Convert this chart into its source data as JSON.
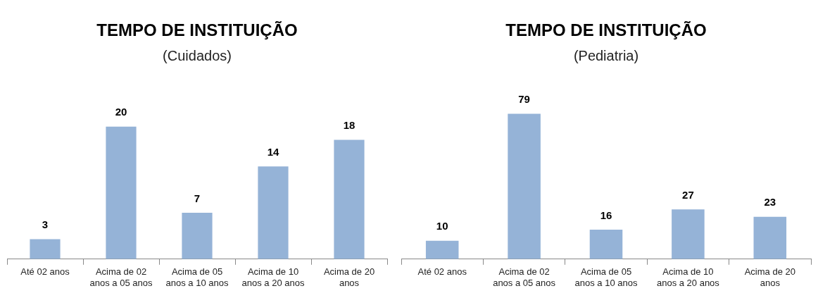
{
  "chart_data": [
    {
      "type": "bar",
      "title": "TEMPO DE INSTITUIÇÃO",
      "subtitle": "(Cuidados)",
      "categories": [
        "Até 02 anos",
        "Acima de 02 anos a 05 anos",
        "Acima de 05 anos a 10 anos",
        "Acima de 10 anos a 20 anos",
        "Acima de 20 anos"
      ],
      "values": [
        3,
        20,
        7,
        14,
        18
      ],
      "color": "#95b3d7",
      "data_labels": true,
      "grid": false,
      "legend": false
    },
    {
      "type": "bar",
      "title": "TEMPO DE INSTITUIÇÃO",
      "subtitle": "(Pediatria)",
      "categories": [
        "Até 02 anos",
        "Acima de 02 anos a 05 anos",
        "Acima de 05 anos a 10 anos",
        "Acima de 10 anos a 20 anos",
        "Acima de 20 anos"
      ],
      "values": [
        10,
        79,
        16,
        27,
        23
      ],
      "color": "#95b3d7",
      "data_labels": true,
      "grid": false,
      "legend": false
    }
  ]
}
